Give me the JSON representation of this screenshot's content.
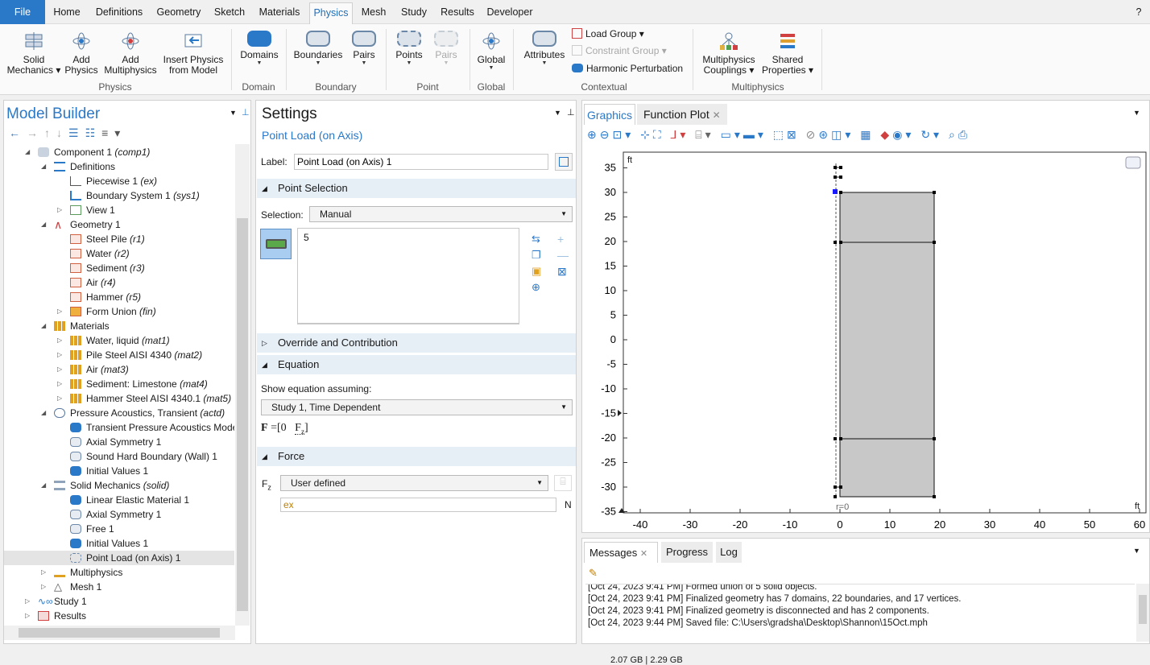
{
  "menu": {
    "tabs": [
      "File",
      "Home",
      "Definitions",
      "Geometry",
      "Sketch",
      "Materials",
      "Physics",
      "Mesh",
      "Study",
      "Results",
      "Developer"
    ],
    "help": "?"
  },
  "ribbon": {
    "solid_mechanics": [
      "Solid",
      "Mechanics ▾"
    ],
    "add_physics": [
      "Add",
      "Physics"
    ],
    "add_multiphysics": [
      "Add",
      "Multiphysics"
    ],
    "insert_physics": [
      "Insert Physics",
      "from Model"
    ],
    "group_physics": "Physics",
    "domains": "Domains",
    "group_domain": "Domain",
    "boundaries": "Boundaries",
    "pairs": "Pairs",
    "group_boundary": "Boundary",
    "points": "Points",
    "pairs_disabled": "Pairs",
    "group_point": "Point",
    "global": "Global",
    "group_global": "Global",
    "attributes": "Attributes",
    "load_group": "Load Group ▾",
    "constraint_group": "Constraint Group ▾",
    "harmonic_perturbation": "Harmonic Perturbation",
    "group_contextual": "Contextual",
    "multiphysics_couplings": [
      "Multiphysics",
      "Couplings ▾"
    ],
    "shared_properties": [
      "Shared",
      "Properties ▾"
    ],
    "group_multiphysics": "Multiphysics"
  },
  "model_builder": {
    "title": "Model Builder",
    "tree": [
      {
        "label": "Component 1",
        "tag": "(comp1)"
      },
      {
        "label": "Definitions",
        "tag": ""
      },
      {
        "label": "Piecewise 1",
        "tag": "(ex)"
      },
      {
        "label": "Boundary System 1",
        "tag": "(sys1)"
      },
      {
        "label": "View 1",
        "tag": ""
      },
      {
        "label": "Geometry 1",
        "tag": ""
      },
      {
        "label": "Steel Pile",
        "tag": "(r1)"
      },
      {
        "label": "Water",
        "tag": "(r2)"
      },
      {
        "label": "Sediment",
        "tag": "(r3)"
      },
      {
        "label": "Air",
        "tag": "(r4)"
      },
      {
        "label": "Hammer",
        "tag": "(r5)"
      },
      {
        "label": "Form Union",
        "tag": "(fin)"
      },
      {
        "label": "Materials",
        "tag": ""
      },
      {
        "label": "Water, liquid",
        "tag": "(mat1)"
      },
      {
        "label": "Pile Steel AISI 4340",
        "tag": "(mat2)"
      },
      {
        "label": "Air",
        "tag": "(mat3)"
      },
      {
        "label": "Sediment: Limestone",
        "tag": "(mat4)"
      },
      {
        "label": "Hammer Steel AISI 4340.1",
        "tag": "(mat5)"
      },
      {
        "label": "Pressure Acoustics, Transient",
        "tag": "(actd)"
      },
      {
        "label": "Transient Pressure Acoustics Mode",
        "tag": ""
      },
      {
        "label": "Axial Symmetry 1",
        "tag": ""
      },
      {
        "label": "Sound Hard Boundary (Wall) 1",
        "tag": ""
      },
      {
        "label": "Initial Values 1",
        "tag": ""
      },
      {
        "label": "Solid Mechanics",
        "tag": "(solid)"
      },
      {
        "label": "Linear Elastic Material 1",
        "tag": ""
      },
      {
        "label": "Axial Symmetry 1",
        "tag": ""
      },
      {
        "label": "Free 1",
        "tag": ""
      },
      {
        "label": "Initial Values 1",
        "tag": ""
      },
      {
        "label": "Point Load (on Axis) 1",
        "tag": ""
      },
      {
        "label": "Multiphysics",
        "tag": ""
      },
      {
        "label": "Mesh 1",
        "tag": ""
      },
      {
        "label": "Study 1",
        "tag": ""
      },
      {
        "label": "Results",
        "tag": ""
      }
    ]
  },
  "settings": {
    "title": "Settings",
    "subtitle": "Point Load (on Axis)",
    "label_caption": "Label:",
    "label_value": "Point Load (on Axis) 1",
    "point_selection": "Point Selection",
    "selection_caption": "Selection:",
    "selection_value": "Manual",
    "selection_list": "5",
    "override": "Override and Contribution",
    "equation": "Equation",
    "show_eq": "Show equation assuming:",
    "study_value": "Study 1, Time Dependent",
    "eq_f": "F",
    "eq_eq": "=",
    "eq_bracket": "[0",
    "eq_fz": "F",
    "eq_fz_sub": "z",
    "force": "Force",
    "fz_label": "F",
    "fz_sub": "z",
    "force_type": "User defined",
    "force_expr": "ex",
    "force_unit": "N"
  },
  "graphics": {
    "tab_graphics": "Graphics",
    "tab_function_plot": "Function Plot",
    "unit_top": "ft",
    "unit_right": "ft",
    "r_label": "r=0",
    "y_ticks": [
      35,
      30,
      25,
      20,
      15,
      10,
      5,
      0,
      -5,
      -10,
      -15,
      -20,
      -25,
      -30,
      -35
    ],
    "x_ticks": [
      -40,
      -30,
      -20,
      -10,
      0,
      10,
      20,
      30,
      40,
      50,
      60
    ]
  },
  "messages": {
    "tab_messages": "Messages",
    "tab_progress": "Progress",
    "tab_log": "Log",
    "lines": [
      "[Oct 24, 2023 9:41 PM] Formed union of 5 solid objects.",
      "[Oct 24, 2023 9:41 PM] Finalized geometry has 7 domains, 22 boundaries, and 17 vertices.",
      "[Oct 24, 2023 9:41 PM] Finalized geometry is disconnected and has 2 components.",
      "[Oct 24, 2023 9:44 PM] Saved file: C:\\Users\\gradsha\\Desktop\\Shannon\\15Oct.mph"
    ]
  },
  "status": {
    "memory": "2.07 GB | 2.29 GB"
  },
  "colors": {
    "accent": "#2a78c8",
    "section_bg": "#e6eef6",
    "geometry_fill": "#c8c8c8"
  }
}
